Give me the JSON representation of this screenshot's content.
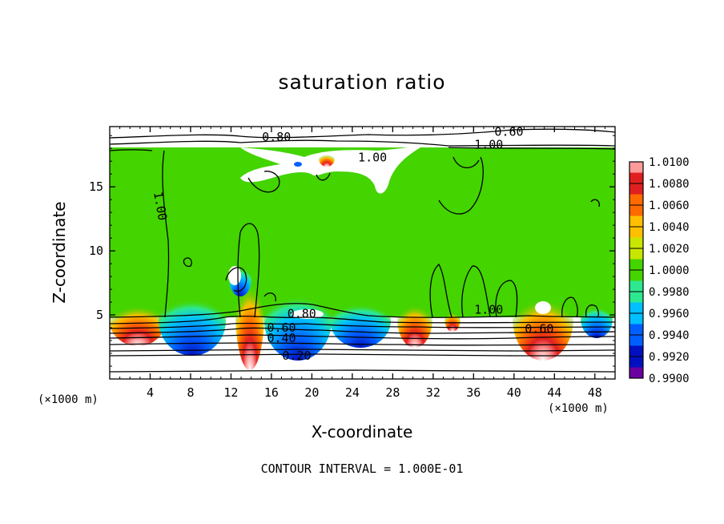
{
  "chart_data": {
    "type": "heatmap",
    "title": "saturation ratio",
    "xlabel": "X-coordinate",
    "ylabel": "Z-coordinate",
    "x_unit_label": "(×1000 m)",
    "footer": "CONTOUR INTERVAL = 1.000E-01",
    "xlim": [
      0,
      50
    ],
    "ylim": [
      0,
      19.7
    ],
    "x_ticks": [
      4,
      8,
      12,
      16,
      20,
      24,
      28,
      32,
      36,
      40,
      44,
      48
    ],
    "y_ticks": [
      5,
      10,
      15
    ],
    "colorbar": {
      "levels": [
        "1.0100",
        "1.0080",
        "1.0060",
        "1.0040",
        "1.0020",
        "1.0000",
        "0.9980",
        "0.9960",
        "0.9940",
        "0.9920",
        "0.9900"
      ],
      "colors": [
        "#ff9a9a",
        "#e02020",
        "#ff6a00",
        "#ffc000",
        "#c8e600",
        "#44d400",
        "#2ee890",
        "#00c0ff",
        "#0060ff",
        "#0010c0",
        "#6a00a0"
      ]
    },
    "contour_labels": [
      {
        "text": "0.80",
        "x": 16.5,
        "z": 18.9
      },
      {
        "text": "0.60",
        "x": 39.5,
        "z": 19.3
      },
      {
        "text": "1.00",
        "x": 37.5,
        "z": 18.3
      },
      {
        "text": "1.00",
        "x": 26.0,
        "z": 17.3
      },
      {
        "text": "1.00",
        "x": 5.0,
        "z": 13.5
      },
      {
        "text": "1.00",
        "x": 37.5,
        "z": 5.4
      },
      {
        "text": "0.60",
        "x": 42.5,
        "z": 3.9
      },
      {
        "text": "0.80",
        "x": 19.0,
        "z": 5.1
      },
      {
        "text": "0.60",
        "x": 17.0,
        "z": 4.0
      },
      {
        "text": "0.40",
        "x": 17.0,
        "z": 3.2
      },
      {
        "text": "0.20",
        "x": 18.5,
        "z": 1.8
      }
    ],
    "lower_contours": [
      0.1,
      0.2,
      0.3,
      0.4,
      0.5,
      0.6,
      0.7,
      0.8,
      0.9
    ]
  },
  "colors": {
    "background": "#44d400",
    "cloud": "#ffffff"
  }
}
